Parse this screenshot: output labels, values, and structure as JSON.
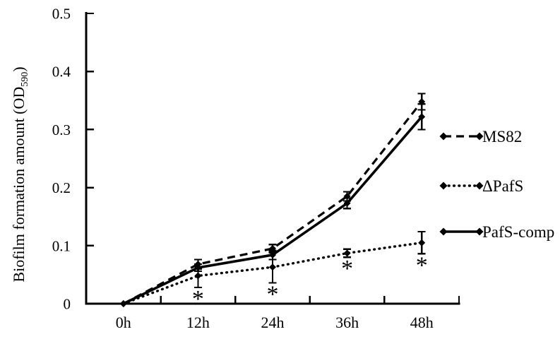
{
  "figure": {
    "background": "#ffffff",
    "ink": "#000000"
  },
  "chart_data": {
    "type": "line",
    "title": "",
    "xlabel": "",
    "ylabel": "Biofilm formation amount (OD590)",
    "ylabel_parts": {
      "prefix": "Biofilm formation amount (OD",
      "subscript": "590",
      "suffix": ")"
    },
    "categories": [
      "0h",
      "12h",
      "24h",
      "36h",
      "48h"
    ],
    "y_tick_labels": [
      "0",
      "0.1",
      "0.2",
      "0.3",
      "0.4",
      "0.5"
    ],
    "ylim": [
      0,
      0.5
    ],
    "grid": false,
    "legend_position": "right",
    "series": [
      {
        "name": "MS82",
        "line_style": "dashed",
        "marker": "diamond",
        "values": [
          0,
          0.068,
          0.095,
          0.185,
          0.348
        ],
        "errors": [
          0,
          0.008,
          0.007,
          0.008,
          0.014
        ]
      },
      {
        "name": "ΔPafS",
        "line_style": "dotted",
        "marker": "diamond",
        "values": [
          0,
          0.048,
          0.063,
          0.087,
          0.105
        ],
        "errors": [
          0,
          0.02,
          0.027,
          0.007,
          0.019
        ],
        "significant": [
          false,
          true,
          true,
          true,
          true
        ],
        "significance_marker": "*"
      },
      {
        "name": "PafS-comp",
        "line_style": "solid",
        "marker": "diamond",
        "values": [
          0,
          0.062,
          0.084,
          0.173,
          0.322
        ],
        "errors": [
          0,
          0.006,
          0.008,
          0.009,
          0.022
        ]
      }
    ]
  }
}
